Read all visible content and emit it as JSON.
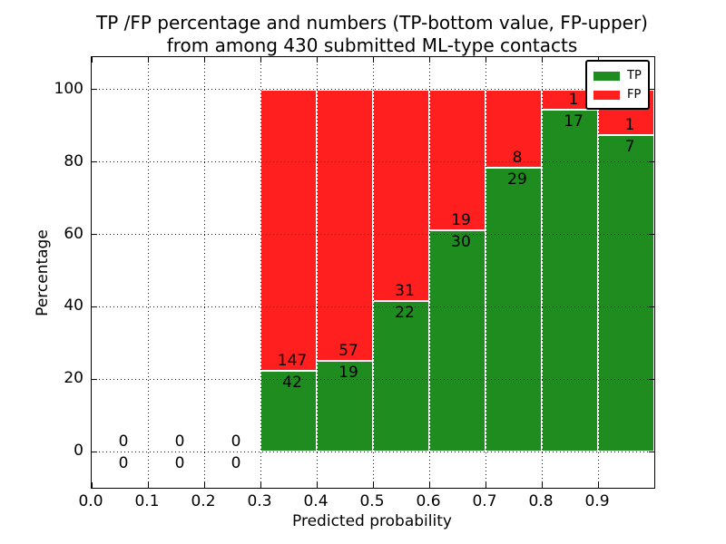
{
  "title": {
    "line1": "TP /FP percentage and numbers (TP-bottom value, FP-upper)",
    "line2": "from among 430 submitted ML-type contacts"
  },
  "axes": {
    "xlabel": "Predicted probability",
    "ylabel": "Percentage",
    "x_tick_labels": [
      "0.0",
      "0.1",
      "0.2",
      "0.3",
      "0.4",
      "0.5",
      "0.6",
      "0.7",
      "0.8",
      "0.9"
    ],
    "y_tick_labels": [
      "0",
      "20",
      "40",
      "60",
      "80",
      "100"
    ]
  },
  "legend": {
    "position": "upper-right",
    "items": [
      {
        "label": "TP",
        "color": "#1e8c1e"
      },
      {
        "label": "FP",
        "color": "#ff1f1f"
      }
    ]
  },
  "colors": {
    "tp": "#1e8c1e",
    "fp": "#ff1f1f",
    "grid": "#111111",
    "background": "#ffffff"
  },
  "chart_data": {
    "type": "bar",
    "stacked": true,
    "title": "TP /FP percentage and numbers (TP-bottom value, FP-upper) from among 430 submitted ML-type contacts",
    "xlabel": "Predicted probability",
    "ylabel": "Percentage",
    "total_contacts": 430,
    "xlim": [
      0.0,
      1.0
    ],
    "ylim": [
      -10,
      109
    ],
    "x_ticks": [
      0.0,
      0.1,
      0.2,
      0.3,
      0.4,
      0.5,
      0.6,
      0.7,
      0.8,
      0.9
    ],
    "y_ticks": [
      0,
      20,
      40,
      60,
      80,
      100
    ],
    "grid": true,
    "bin_width": 0.1,
    "bins": [
      {
        "x_start": 0.0,
        "tp_count": 0,
        "fp_count": 0,
        "tp_pct": 0,
        "fp_pct": 0
      },
      {
        "x_start": 0.1,
        "tp_count": 0,
        "fp_count": 0,
        "tp_pct": 0,
        "fp_pct": 0
      },
      {
        "x_start": 0.2,
        "tp_count": 0,
        "fp_count": 0,
        "tp_pct": 0,
        "fp_pct": 0
      },
      {
        "x_start": 0.3,
        "tp_count": 42,
        "fp_count": 147,
        "tp_pct": 22.22,
        "fp_pct": 77.78
      },
      {
        "x_start": 0.4,
        "tp_count": 19,
        "fp_count": 57,
        "tp_pct": 25.0,
        "fp_pct": 75.0
      },
      {
        "x_start": 0.5,
        "tp_count": 22,
        "fp_count": 31,
        "tp_pct": 41.51,
        "fp_pct": 58.49
      },
      {
        "x_start": 0.6,
        "tp_count": 30,
        "fp_count": 19,
        "tp_pct": 61.22,
        "fp_pct": 38.78
      },
      {
        "x_start": 0.7,
        "tp_count": 29,
        "fp_count": 8,
        "tp_pct": 78.38,
        "fp_pct": 21.62
      },
      {
        "x_start": 0.8,
        "tp_count": 17,
        "fp_count": 1,
        "tp_pct": 94.44,
        "fp_pct": 5.56
      },
      {
        "x_start": 0.9,
        "tp_count": 7,
        "fp_count": 1,
        "tp_pct": 87.5,
        "fp_pct": 12.5
      }
    ],
    "series": [
      {
        "name": "TP",
        "color": "#1e8c1e",
        "counts": [
          0,
          0,
          0,
          42,
          19,
          22,
          30,
          29,
          17,
          7
        ],
        "values_pct": [
          0,
          0,
          0,
          22.22,
          25.0,
          41.51,
          61.22,
          78.38,
          94.44,
          87.5
        ]
      },
      {
        "name": "FP",
        "color": "#ff1f1f",
        "counts": [
          0,
          0,
          0,
          147,
          57,
          31,
          19,
          8,
          1,
          1
        ],
        "values_pct": [
          0,
          0,
          0,
          77.78,
          75.0,
          58.49,
          38.78,
          21.62,
          5.56,
          12.5
        ]
      }
    ]
  }
}
